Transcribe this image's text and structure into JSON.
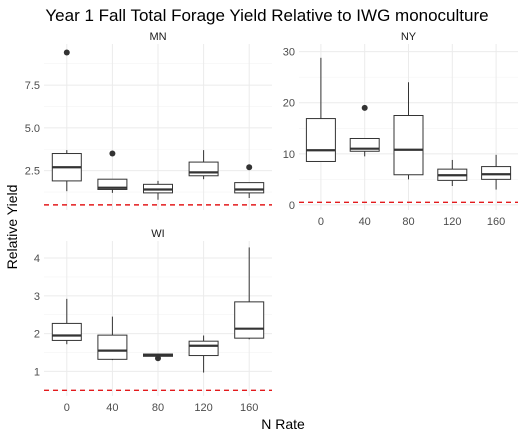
{
  "chart_data": {
    "type": "boxplot",
    "title": "Year 1 Fall Total Forage Yield Relative to IWG monoculture",
    "xlabel": "N Rate",
    "ylabel": "Relative Yield",
    "categories": [
      "0",
      "40",
      "80",
      "120",
      "160"
    ],
    "reference_line": {
      "y": 0.5,
      "color": "#e31a1c",
      "style": "dashed"
    },
    "panels": [
      {
        "name": "MN",
        "ylim": [
          0.2,
          9.9
        ],
        "yticks": [
          2.5,
          5.0,
          7.5
        ],
        "ytick_labels": [
          "2.5",
          "5.0",
          "7.5"
        ],
        "boxes": [
          {
            "x": "0",
            "min": 1.3,
            "q1": 1.9,
            "median": 2.7,
            "q3": 3.5,
            "max": 3.7,
            "outliers": [
              9.4
            ]
          },
          {
            "x": "40",
            "min": 1.2,
            "q1": 1.4,
            "median": 1.5,
            "q3": 2.0,
            "max": 2.0,
            "outliers": [
              3.5
            ]
          },
          {
            "x": "80",
            "min": 0.8,
            "q1": 1.2,
            "median": 1.4,
            "q3": 1.7,
            "max": 1.9,
            "outliers": []
          },
          {
            "x": "120",
            "min": 2.0,
            "q1": 2.2,
            "median": 2.4,
            "q3": 3.0,
            "max": 3.7,
            "outliers": []
          },
          {
            "x": "160",
            "min": 0.9,
            "q1": 1.2,
            "median": 1.4,
            "q3": 1.8,
            "max": 1.8,
            "outliers": [
              2.7
            ]
          }
        ]
      },
      {
        "name": "NY",
        "ylim": [
          -1.0,
          31.5
        ],
        "yticks": [
          0,
          10,
          20,
          30
        ],
        "ytick_labels": [
          "0",
          "10",
          "20",
          "30"
        ],
        "boxes": [
          {
            "x": "0",
            "min": 8.5,
            "q1": 8.5,
            "median": 10.7,
            "q3": 16.9,
            "max": 28.8,
            "outliers": []
          },
          {
            "x": "40",
            "min": 9.5,
            "q1": 10.5,
            "median": 11.0,
            "q3": 13.0,
            "max": 13.0,
            "outliers": [
              19.0
            ]
          },
          {
            "x": "80",
            "min": 5.0,
            "q1": 5.9,
            "median": 10.8,
            "q3": 17.5,
            "max": 24.0,
            "outliers": []
          },
          {
            "x": "120",
            "min": 3.7,
            "q1": 4.8,
            "median": 5.8,
            "q3": 7.0,
            "max": 8.8,
            "outliers": []
          },
          {
            "x": "160",
            "min": 3.0,
            "q1": 5.0,
            "median": 6.0,
            "q3": 7.5,
            "max": 9.8,
            "outliers": []
          }
        ]
      },
      {
        "name": "WI",
        "ylim": [
          0.35,
          4.45
        ],
        "yticks": [
          1,
          2,
          3,
          4
        ],
        "ytick_labels": [
          "1",
          "2",
          "3",
          "4"
        ],
        "boxes": [
          {
            "x": "0",
            "min": 1.72,
            "q1": 1.82,
            "median": 1.95,
            "q3": 2.27,
            "max": 2.92,
            "outliers": []
          },
          {
            "x": "40",
            "min": 1.3,
            "q1": 1.32,
            "median": 1.55,
            "q3": 1.96,
            "max": 2.45,
            "outliers": []
          },
          {
            "x": "80",
            "min": 1.4,
            "q1": 1.4,
            "median": 1.43,
            "q3": 1.46,
            "max": 1.46,
            "outliers": [
              1.35
            ]
          },
          {
            "x": "120",
            "min": 0.97,
            "q1": 1.42,
            "median": 1.68,
            "q3": 1.8,
            "max": 1.95,
            "outliers": []
          },
          {
            "x": "160",
            "min": 1.85,
            "q1": 1.88,
            "median": 2.13,
            "q3": 2.84,
            "max": 4.28,
            "outliers": []
          }
        ]
      }
    ]
  }
}
